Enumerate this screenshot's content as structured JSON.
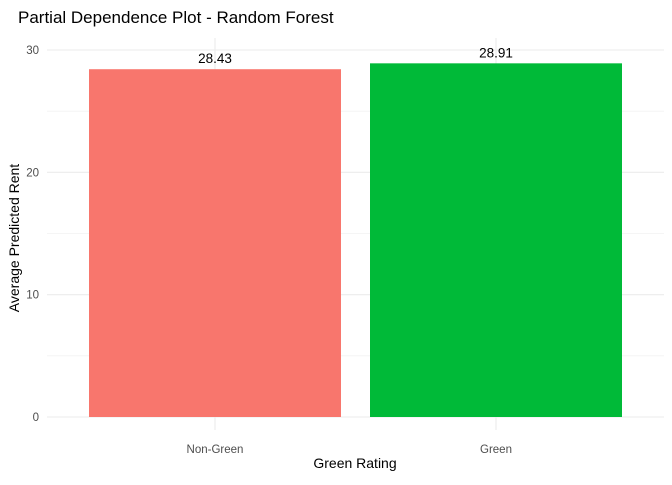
{
  "chart_data": {
    "type": "bar",
    "title": "Partial Dependence Plot - Random Forest",
    "xlabel": "Green Rating",
    "ylabel": "Average Predicted Rent",
    "categories": [
      "Non-Green",
      "Green"
    ],
    "values": [
      28.43,
      28.91
    ],
    "data_labels": [
      "28.43",
      "28.91"
    ],
    "colors": [
      "#F8766D",
      "#00BA38"
    ],
    "ylim": [
      0,
      30.5
    ],
    "yticks": [
      0,
      10,
      20,
      30
    ],
    "ytick_labels": [
      "0",
      "10",
      "20",
      "30"
    ],
    "grid": true,
    "legend": "none",
    "theme": "minimal"
  }
}
